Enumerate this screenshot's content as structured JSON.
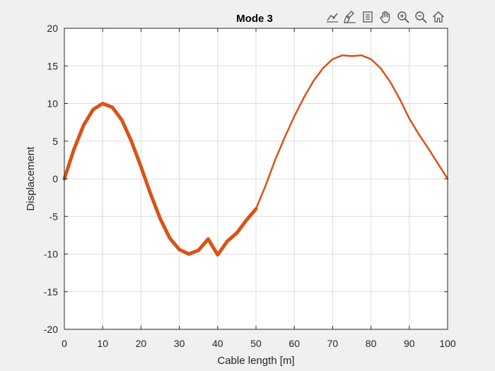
{
  "toolbar": {
    "items": [
      {
        "name": "data-tips-icon"
      },
      {
        "name": "brush-icon"
      },
      {
        "name": "legend-icon"
      },
      {
        "name": "pan-icon"
      },
      {
        "name": "zoom-in-icon"
      },
      {
        "name": "zoom-out-icon"
      },
      {
        "name": "home-icon"
      }
    ]
  },
  "colors": {
    "line": "#d95319",
    "grid": "#dcdcdc",
    "axes_bg": "#ffffff",
    "figure_bg": "#f0f0f0",
    "axis": "#262626"
  },
  "chart_data": {
    "type": "line",
    "title": "Mode 3",
    "xlabel": "Cable length [m]",
    "ylabel": "Displacement",
    "xlim": [
      0,
      100
    ],
    "ylim": [
      -20,
      20
    ],
    "xticks": [
      0,
      10,
      20,
      30,
      40,
      50,
      60,
      70,
      80,
      90,
      100
    ],
    "yticks": [
      -20,
      -15,
      -10,
      -5,
      0,
      5,
      10,
      15,
      20
    ],
    "grid": true,
    "series": [
      {
        "segment": "thick",
        "x": [
          0,
          2.5,
          5,
          7.5,
          10,
          12.5,
          15,
          17.5,
          20,
          22.5,
          25,
          27.5,
          30,
          32.5,
          35,
          37.5,
          40,
          42.5,
          45,
          47.5,
          50
        ],
        "y": [
          0,
          3.9,
          7.1,
          9.2,
          10.0,
          9.5,
          7.8,
          5.0,
          1.6,
          -2.0,
          -5.3,
          -7.9,
          -9.4,
          -10.0,
          -9.5,
          -8.0,
          -10.1,
          -8.3,
          -7.2,
          -5.5,
          -4.0
        ]
      },
      {
        "segment": "thin",
        "x": [
          50,
          52.5,
          55,
          57.5,
          60,
          62.5,
          65,
          67.5,
          70,
          72.5,
          75,
          77.5,
          80,
          82.5,
          85,
          87.5,
          90,
          92.5,
          95,
          97.5,
          100
        ],
        "y": [
          -4.0,
          -0.9,
          2.5,
          5.5,
          8.3,
          10.8,
          13.0,
          14.7,
          15.9,
          16.4,
          16.3,
          16.4,
          15.9,
          14.7,
          12.9,
          10.6,
          8.0,
          5.9,
          4.0,
          2.0,
          0
        ]
      }
    ]
  }
}
